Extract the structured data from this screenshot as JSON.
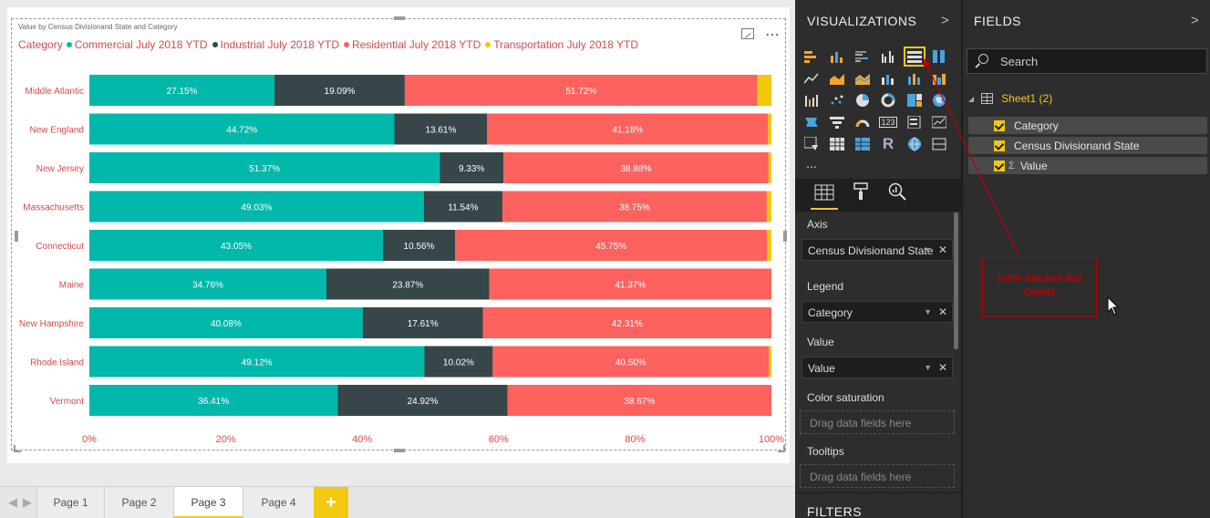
{
  "visualization": {
    "title": "Value by Census Divisionand State and Category"
  },
  "legend": {
    "title": "Category",
    "items": [
      {
        "label": "Commercial July 2018 YTD",
        "color": "#01b8aa"
      },
      {
        "label": "Industrial July 2018 YTD",
        "color": "#374649"
      },
      {
        "label": "Residential July 2018 YTD",
        "color": "#fd625e"
      },
      {
        "label": "Transportation July 2018 YTD",
        "color": "#f2c80f"
      }
    ]
  },
  "chart_data": {
    "type": "bar",
    "orientation": "horizontal",
    "stacking": "100%",
    "title": "Value by Census Divisionand State and Category",
    "categories": [
      "Middle Atlantic",
      "New England",
      "New Jersey",
      "Massachusetts",
      "Connecticut",
      "Maine",
      "New Hampshire",
      "Rhode Island",
      "Vermont"
    ],
    "series": [
      {
        "name": "Commercial July 2018 YTD",
        "color": "#01b8aa",
        "values": [
          27.15,
          44.72,
          51.37,
          49.03,
          43.05,
          34.76,
          40.08,
          49.12,
          36.41
        ],
        "labels": [
          "27.15%",
          "44.72%",
          "51.37%",
          "49.03%",
          "43.05%",
          "34.76%",
          "40.08%",
          "49.12%",
          "36.41%"
        ]
      },
      {
        "name": "Industrial July 2018 YTD",
        "color": "#374649",
        "values": [
          19.09,
          13.61,
          9.33,
          11.54,
          10.56,
          23.87,
          17.61,
          10.02,
          24.92
        ],
        "labels": [
          "19.09%",
          "13.61%",
          "9.33%",
          "11.54%",
          "10.56%",
          "23.87%",
          "17.61%",
          "10.02%",
          "24.92%"
        ]
      },
      {
        "name": "Residential July 2018 YTD",
        "color": "#fd625e",
        "values": [
          51.72,
          41.18,
          38.88,
          38.75,
          45.75,
          41.37,
          42.31,
          40.5,
          38.67
        ],
        "labels": [
          "51.72%",
          "41.18%",
          "38.88%",
          "38.75%",
          "45.75%",
          "41.37%",
          "42.31%",
          "40.50%",
          "38.67%"
        ]
      },
      {
        "name": "Transportation July 2018 YTD",
        "color": "#f2c80f",
        "values": [
          2.04,
          0.49,
          0.42,
          0.68,
          0.64,
          0.0,
          0.0,
          0.36,
          0.0
        ],
        "labels": [
          "",
          "",
          "",
          "",
          "",
          "",
          "",
          "",
          ""
        ]
      }
    ],
    "xaxis": {
      "ticks": [
        "0%",
        "20%",
        "40%",
        "60%",
        "80%",
        "100%"
      ],
      "tick_values": [
        0,
        20,
        40,
        60,
        80,
        100
      ]
    },
    "xlim": [
      0,
      100
    ],
    "label_color": "#d84a4a",
    "gridlines": false
  },
  "pages": {
    "tabs": [
      "Page 1",
      "Page 2",
      "Page 3",
      "Page 4"
    ],
    "active": "Page 3",
    "add_label": "+"
  },
  "visualizations_pane": {
    "header": "VISUALIZATIONS",
    "more": "...",
    "tabs": [
      "fields-tab",
      "format-tab",
      "analytics-tab"
    ],
    "wells": {
      "axis": {
        "label": "Axis",
        "value": "Census Divisionand State"
      },
      "legend": {
        "label": "Legend",
        "value": "Category"
      },
      "value": {
        "label": "Value",
        "value": "Value"
      },
      "color_saturation": {
        "label": "Color saturation",
        "placeholder": "Drag data fields here"
      },
      "tooltips": {
        "label": "Tooltips",
        "placeholder": "Drag data fields here"
      }
    },
    "filters_header": "FILTERS"
  },
  "fields_pane": {
    "header": "FIELDS",
    "search_placeholder": "Search",
    "table": "Sheet1 (2)",
    "fields": [
      {
        "label": "Category",
        "checked": true,
        "measure": false
      },
      {
        "label": "Census Divisionand State",
        "checked": true,
        "measure": false
      },
      {
        "label": "Value",
        "checked": true,
        "measure": true
      }
    ]
  },
  "annotation": {
    "text": "100% Stacked Bar Charts"
  },
  "colors": {
    "accent": "#f2c811",
    "pane_bg": "#2d2d2d",
    "annotation": "#c00000"
  }
}
